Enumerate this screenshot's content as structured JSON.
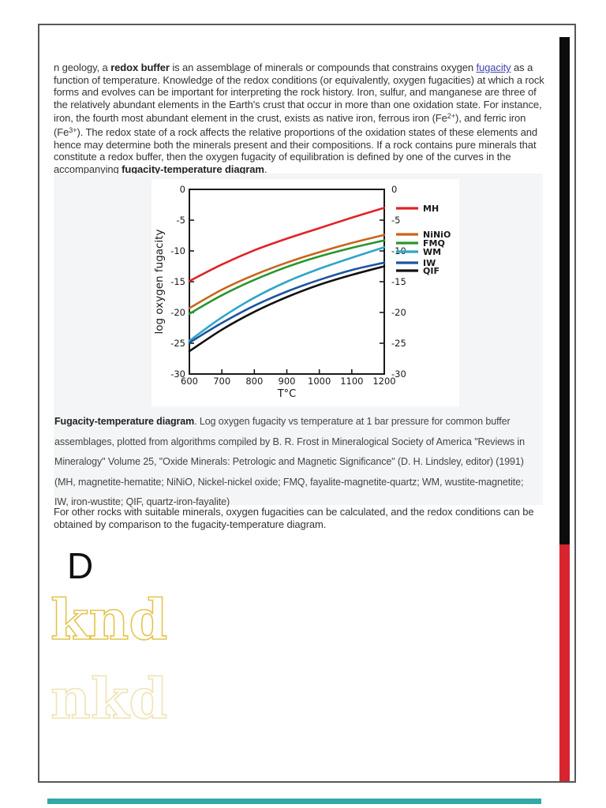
{
  "page": {
    "background": "#ffffff",
    "border_color": "#58585a"
  },
  "right_rail": {
    "black_color": "#0c0c0c",
    "red_color": "#d7242e"
  },
  "intro_paragraph": {
    "t1": "n geology, a ",
    "b1": "redox buffer",
    "t2": " is an assemblage of minerals or compounds that constrains oxygen ",
    "link1": "fugacity",
    "t3": " as a function of temperature. Knowledge of the redox conditions (or equivalently, oxygen fugacities) at which a rock forms and evolves can be important for interpreting the rock history. Iron, sulfur, and manganese are three of the relatively abundant elements in the Earth's crust that occur in more than one oxidation state. For instance, iron, the fourth most abundant element in the crust, exists as native iron, ferrous iron (Fe",
    "sup1": "2+",
    "t4": "), and ferric iron (Fe",
    "sup2": "3+",
    "t5": "). The redox state of a rock affects the relative proportions of the oxidation states of these elements and hence may determine both the minerals present and their compositions. If a rock contains pure minerals that constitute a redox buffer, then the oxygen fugacity of equilibration is defined by one of the curves in the accompanying ",
    "b2": "fugacity-temperature diagram",
    "t6": "."
  },
  "figure": {
    "background": "#f4f5f6",
    "caption_lead": "Fugacity-temperature diagram",
    "caption_body": ". Log oxygen fugacity vs temperature at 1 bar pressure for common buffer assemblages, plotted from algorithms compiled by B. R. Frost in Mineralogical Society of America \"Reviews in Mineralogy\" Volume 25, \"Oxide Minerals: Petrologic and Magnetic Significance\" (D. H. Lindsley, editor) (1991) (MH, magnetite-hematite; NiNiO, Nickel-nickel oxide; FMQ, fayalite-magnetite-quartz; WM, wustite-magnetite; IW, iron-wustite; QIF, quartz-iron-fayalite)"
  },
  "closing_paragraph": "For other rocks with suitable minerals, oxygen fugacities can be calculated, and the redox conditions can be obtained by comparison to the fugacity-temperature diagram.",
  "artifacts": {
    "letter_d": "D",
    "outline_word_1": "knd",
    "outline_word_2": "nkd",
    "outline_color_1": "#e3c44d",
    "outline_color_2": "#efe3b4",
    "teal_bar_color": "#33a9a6"
  },
  "chart_data": {
    "type": "line",
    "title": "",
    "xlabel": "T°C",
    "ylabel": "log oxygen fugacity",
    "x": [
      600,
      700,
      800,
      900,
      1000,
      1100,
      1200
    ],
    "xticks": [
      600,
      700,
      800,
      900,
      1000,
      1100,
      1200
    ],
    "yticks": [
      0,
      -5,
      -10,
      -15,
      -20,
      -25,
      -30
    ],
    "xlim": [
      600,
      1200
    ],
    "ylim": [
      -30,
      0
    ],
    "grid": false,
    "legend_position": "right",
    "series": [
      {
        "name": "MH",
        "color": "#e02228",
        "values": [
          -14.9,
          -12.2,
          -9.9,
          -8.0,
          -6.3,
          -4.6,
          -3.0
        ]
      },
      {
        "name": "NiNiO",
        "color": "#c8651c",
        "values": [
          -19.3,
          -16.3,
          -13.9,
          -11.9,
          -10.2,
          -8.7,
          -7.4
        ]
      },
      {
        "name": "FMQ",
        "color": "#28962e",
        "values": [
          -20.2,
          -17.2,
          -14.7,
          -12.6,
          -10.9,
          -9.5,
          -8.3
        ]
      },
      {
        "name": "WM",
        "color": "#2fa6c8",
        "values": [
          -24.6,
          -20.8,
          -17.6,
          -15.0,
          -12.9,
          -11.1,
          -9.4
        ]
      },
      {
        "name": "IW",
        "color": "#1d54a0",
        "values": [
          -24.9,
          -21.7,
          -18.9,
          -16.6,
          -14.7,
          -13.1,
          -11.9
        ]
      },
      {
        "name": "QIF",
        "color": "#111111",
        "values": [
          -26.3,
          -22.8,
          -19.9,
          -17.5,
          -15.5,
          -13.9,
          -12.5
        ]
      }
    ]
  }
}
